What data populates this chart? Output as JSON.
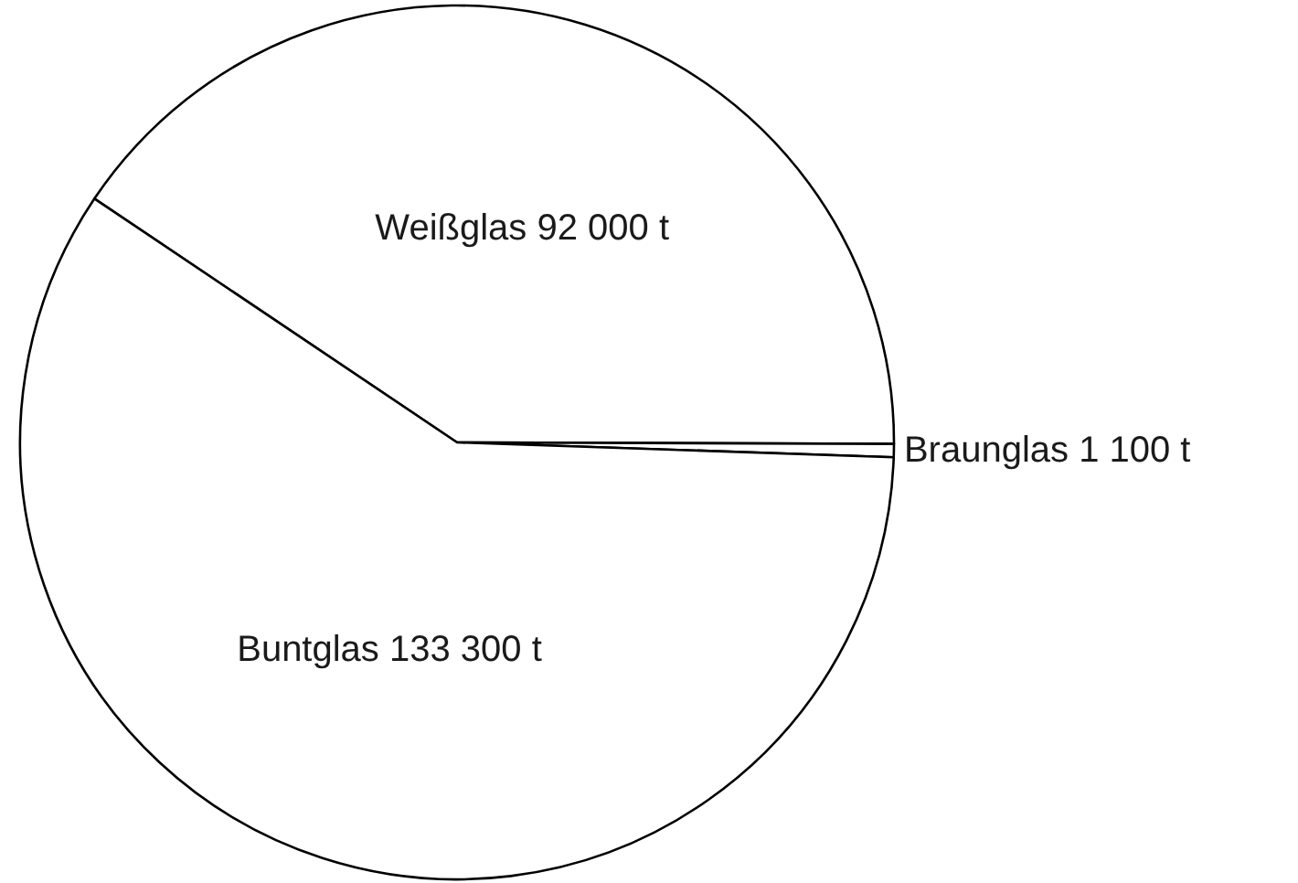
{
  "chart_data": {
    "type": "pie",
    "categories": [
      "Weißglas",
      "Braunglas",
      "Buntglas"
    ],
    "values": [
      92000,
      1100,
      133300
    ],
    "value_labels": [
      "92 000 t",
      "1 100 t",
      "133 300 t"
    ],
    "colors": [
      "#ffffff",
      "#ffffff",
      "#ffffff"
    ],
    "legend": false
  }
}
